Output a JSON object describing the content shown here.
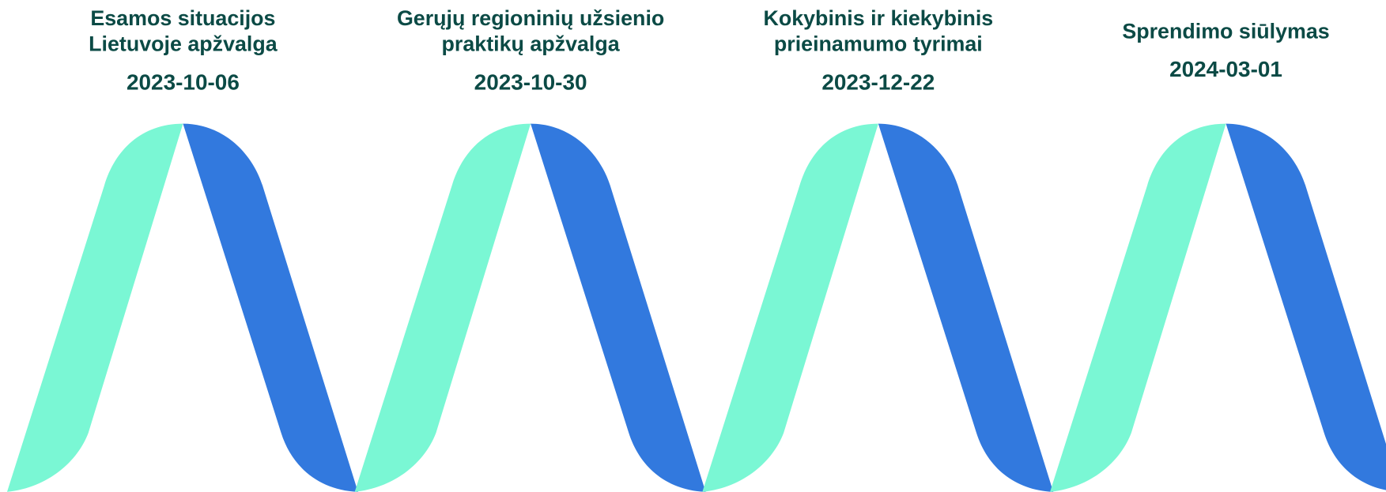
{
  "steps": [
    {
      "title": [
        "Esamos situacijos",
        "Lietuvoje apžvalga"
      ],
      "date": "2023-10-06"
    },
    {
      "title": [
        "Gerųjų regioninių užsienio",
        "praktikų apžvalga"
      ],
      "date": "2023-10-30"
    },
    {
      "title": [
        "Kokybinis ir kiekybinis",
        "prieinamumo tyrimai"
      ],
      "date": "2023-12-22"
    },
    {
      "title": [
        "Sprendimo siūlymas"
      ],
      "date": "2024-03-01"
    }
  ]
}
